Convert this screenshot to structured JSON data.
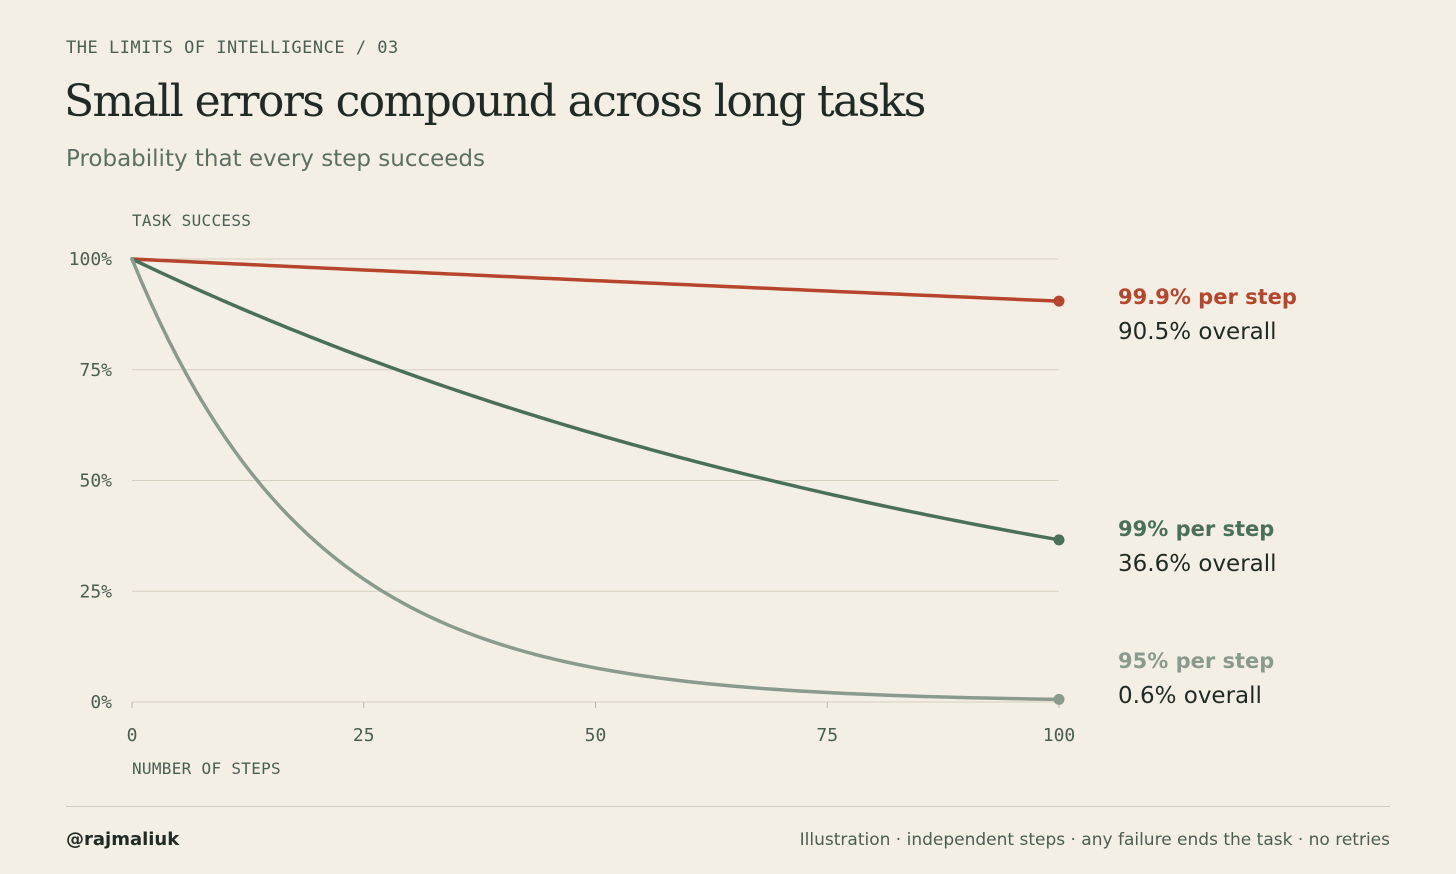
{
  "kicker": "THE LIMITS OF INTELLIGENCE / 03",
  "title": "Small errors compound across long tasks",
  "subtitle": "Probability that every step succeeds",
  "footer": {
    "handle": "@rajmaliuk",
    "note": "Illustration · independent steps · any failure ends the task · no retries"
  },
  "chart_data": {
    "type": "line",
    "ylabel": "TASK SUCCESS",
    "xlabel": "NUMBER OF STEPS",
    "xlim": [
      0,
      100
    ],
    "ylim": [
      0,
      100
    ],
    "x_ticks": [
      0,
      25,
      50,
      75,
      100
    ],
    "x_tick_labels": [
      "0",
      "25",
      "50",
      "75",
      "100"
    ],
    "y_ticks": [
      0,
      25,
      50,
      75,
      100
    ],
    "y_tick_labels": [
      "0%",
      "25%",
      "50%",
      "75%",
      "100%"
    ],
    "grid": "horizontal",
    "legend": "direct labels at line ends (right)",
    "series": [
      {
        "rate_label": "99.9% per step",
        "overall_label": "90.5% overall",
        "per_step_rate": 0.999,
        "endpoint": [
          100,
          90.5
        ],
        "color": "#b5452c"
      },
      {
        "rate_label": "99% per step",
        "overall_label": "36.6% overall",
        "per_step_rate": 0.99,
        "endpoint": [
          100,
          36.6
        ],
        "color": "#4a7058"
      },
      {
        "rate_label": "95% per step",
        "overall_label": "0.6% overall",
        "per_step_rate": 0.95,
        "endpoint": [
          100,
          0.6
        ],
        "color": "#8a9b8d"
      }
    ]
  }
}
